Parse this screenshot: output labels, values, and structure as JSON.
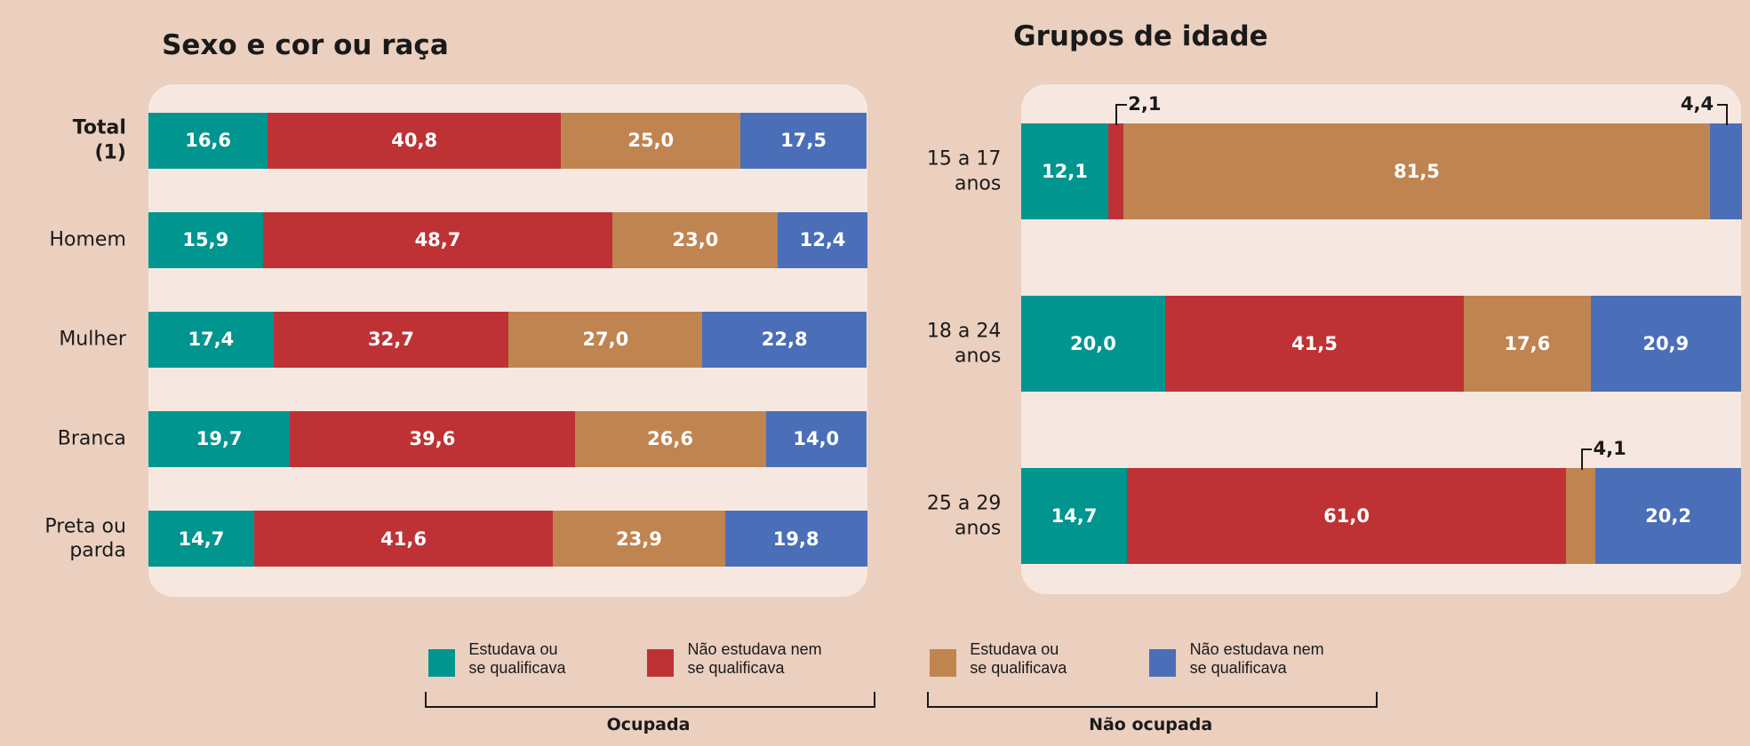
{
  "chart_data": [
    {
      "type": "bar",
      "orientation": "horizontal",
      "stacked": true,
      "title": "Sexo e cor ou raça",
      "categories": [
        "Total (1)",
        "Homem",
        "Mulher",
        "Branca",
        "Preta ou parda"
      ],
      "xlim": [
        0,
        100
      ],
      "series": [
        {
          "name": "Estudava ou se qualificava",
          "color": "#00958f",
          "values": [
            16.6,
            15.9,
            17.4,
            19.7,
            14.7
          ],
          "value_labels": [
            "16,6",
            "15,9",
            "17,4",
            "19,7",
            "14,7"
          ]
        },
        {
          "name": "Não estudava nem se qualificava",
          "color": "#be3235",
          "values": [
            40.8,
            48.7,
            32.7,
            39.6,
            41.6
          ],
          "value_labels": [
            "40,8",
            "48,7",
            "32,7",
            "39,6",
            "41,6"
          ]
        },
        {
          "name": "Estudava ou se qualificava",
          "color": "#c08451",
          "values": [
            25.0,
            23.0,
            27.0,
            26.6,
            23.9
          ],
          "value_labels": [
            "25,0",
            "23,0",
            "27,0",
            "26,6",
            "23,9"
          ]
        },
        {
          "name": "Não estudava nem se qualificava",
          "color": "#4a6fb8",
          "values": [
            17.5,
            12.4,
            22.8,
            14.0,
            19.8
          ],
          "value_labels": [
            "17,5",
            "12,4",
            "22,8",
            "14,0",
            "19,8"
          ]
        }
      ]
    },
    {
      "type": "bar",
      "orientation": "horizontal",
      "stacked": true,
      "title": "Grupos de idade",
      "categories": [
        "15 a 17 anos",
        "18 a 24 anos",
        "25 a 29 anos"
      ],
      "xlim": [
        0,
        100
      ],
      "series": [
        {
          "name": "Estudava ou se qualificava",
          "color": "#00958f",
          "values": [
            12.1,
            20.0,
            14.7
          ],
          "value_labels": [
            "12,1",
            "20,0",
            "14,7"
          ]
        },
        {
          "name": "Não estudava nem se qualificava",
          "color": "#be3235",
          "values": [
            2.1,
            41.5,
            61.0
          ],
          "value_labels": [
            "2,1",
            "41,5",
            "61,0"
          ]
        },
        {
          "name": "Estudava ou se qualificava",
          "color": "#c08451",
          "values": [
            81.5,
            17.6,
            4.1
          ],
          "value_labels": [
            "81,5",
            "17,6",
            "4,1"
          ]
        },
        {
          "name": "Não estudava nem se qualificava",
          "color": "#4a6fb8",
          "values": [
            4.4,
            20.9,
            20.2
          ],
          "value_labels": [
            "4,4",
            "20,9",
            "20,2"
          ]
        }
      ]
    }
  ],
  "legend": {
    "groups": [
      "Ocupada",
      "Não ocupada"
    ]
  }
}
